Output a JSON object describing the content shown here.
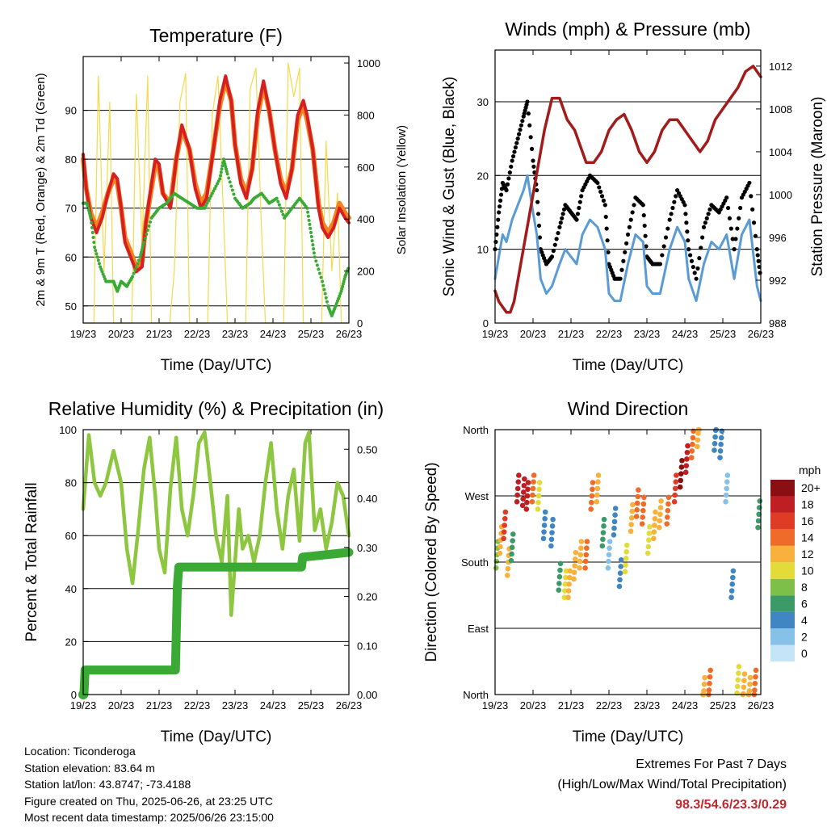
{
  "chart_data": [
    {
      "type": "line",
      "title": "Temperature (F)",
      "xlabel": "Time (Day/UTC)",
      "ylabel": "2m & 9m T (Red, Orange) & 2m Td (Green)",
      "ylabel_right": "Solar Insolation (Yellow)",
      "x_ticks": [
        "19/23",
        "20/23",
        "21/23",
        "22/23",
        "23/23",
        "24/23",
        "25/23",
        "26/23"
      ],
      "ylim": [
        46.5,
        101
      ],
      "y_ticks": [
        50,
        60,
        70,
        80,
        90
      ],
      "ylim_right": [
        0,
        1025
      ],
      "y_ticks_right": [
        0,
        200,
        400,
        600,
        800,
        1000
      ],
      "series": [
        {
          "name": "2m T",
          "color": "#d62020",
          "x": [
            0,
            0.08,
            0.2,
            0.35,
            0.5,
            0.65,
            0.8,
            0.9,
            1.0,
            1.1,
            1.25,
            1.4,
            1.55,
            1.65,
            1.8,
            1.9,
            2.0,
            2.1,
            2.3,
            2.45,
            2.6,
            2.8,
            2.95,
            3.1,
            3.25,
            3.45,
            3.6,
            3.75,
            3.9,
            4.0,
            4.15,
            4.3,
            4.45,
            4.6,
            4.75,
            4.9,
            5.05,
            5.2,
            5.35,
            5.5,
            5.65,
            5.8,
            5.9,
            6.05,
            6.2,
            6.3,
            6.45,
            6.6,
            6.75,
            6.9,
            7.0
          ],
          "y": [
            81,
            74,
            68,
            65,
            68,
            73,
            77,
            76,
            70,
            63,
            60,
            57,
            58,
            67,
            75,
            80,
            79,
            73,
            70,
            80,
            87,
            82,
            74,
            70,
            72,
            83,
            92,
            97,
            92,
            83,
            75,
            72,
            78,
            90,
            96,
            90,
            82,
            75,
            72,
            78,
            89,
            92,
            89,
            82,
            70,
            66,
            64,
            66,
            70,
            68,
            67
          ]
        },
        {
          "name": "9m T",
          "color": "#f5821f",
          "x": [
            0,
            0.08,
            0.2,
            0.35,
            0.5,
            0.65,
            0.8,
            0.9,
            1.0,
            1.1,
            1.25,
            1.4,
            1.55,
            1.65,
            1.8,
            1.9,
            2.0,
            2.1,
            2.3,
            2.45,
            2.6,
            2.8,
            2.95,
            3.1,
            3.25,
            3.45,
            3.6,
            3.75,
            3.9,
            4.0,
            4.15,
            4.3,
            4.45,
            4.6,
            4.75,
            4.9,
            5.05,
            5.2,
            5.35,
            5.5,
            5.65,
            5.8,
            5.9,
            6.05,
            6.2,
            6.3,
            6.45,
            6.6,
            6.75,
            6.9,
            7.0
          ],
          "y": [
            80,
            74,
            69,
            66,
            69,
            73,
            76,
            75,
            70,
            64,
            61,
            58,
            59,
            67,
            74,
            79,
            78,
            73,
            71,
            80,
            86,
            82,
            75,
            71,
            73,
            83,
            91,
            96,
            92,
            83,
            76,
            73,
            78,
            89,
            95,
            90,
            82,
            76,
            73,
            78,
            88,
            91,
            88,
            82,
            71,
            67,
            65,
            67,
            71,
            69,
            68
          ]
        },
        {
          "name": "2m Td",
          "color": "#3aaa35",
          "x": [
            0,
            0.1,
            0.2,
            0.3,
            0.45,
            0.6,
            0.8,
            0.9,
            1.0,
            1.15,
            1.3,
            1.5,
            1.6,
            1.8,
            2.0,
            2.2,
            2.4,
            2.6,
            2.8,
            3.0,
            3.2,
            3.4,
            3.6,
            3.7,
            3.8,
            4.0,
            4.2,
            4.4,
            4.5,
            4.7,
            4.9,
            5.1,
            5.3,
            5.5,
            5.7,
            5.9,
            6.0,
            6.1,
            6.3,
            6.45,
            6.55,
            6.65,
            6.8,
            6.9,
            7.0
          ],
          "y": [
            71,
            71,
            68,
            62,
            58,
            55,
            55,
            53,
            55,
            54,
            56,
            60,
            63,
            68,
            70,
            71,
            73,
            72,
            71,
            70,
            70,
            73,
            76,
            80,
            77,
            72,
            70,
            71,
            72,
            73,
            71,
            72,
            68,
            70,
            72,
            70,
            65,
            60,
            55,
            50,
            48,
            50,
            53,
            56,
            58
          ]
        },
        {
          "name": "Solar Insolation",
          "color": "#f5d94a",
          "axis": "right",
          "x": [
            0,
            0.28,
            0.4,
            0.55,
            0.7,
            0.8,
            0.95,
            1.1,
            1.28,
            1.4,
            1.55,
            1.7,
            1.8,
            1.95,
            2.1,
            2.28,
            2.4,
            2.55,
            2.7,
            2.8,
            2.95,
            3.1,
            3.28,
            3.4,
            3.55,
            3.7,
            3.8,
            3.95,
            4.1,
            4.28,
            4.4,
            4.55,
            4.7,
            4.8,
            4.95,
            5.1,
            5.28,
            5.4,
            5.55,
            5.7,
            5.8,
            5.95,
            6.1,
            6.28,
            6.4,
            6.55,
            6.7,
            6.8,
            6.95,
            7.0
          ],
          "y": [
            0,
            0,
            950,
            200,
            850,
            0,
            0,
            0,
            0,
            880,
            300,
            950,
            0,
            0,
            0,
            0,
            200,
            850,
            960,
            0,
            0,
            0,
            0,
            800,
            950,
            400,
            0,
            0,
            0,
            0,
            900,
            980,
            350,
            0,
            0,
            0,
            0,
            1000,
            870,
            980,
            0,
            0,
            0,
            0,
            700,
            200,
            500,
            0,
            0,
            0
          ]
        }
      ]
    },
    {
      "type": "line",
      "title": "Winds (mph) & Pressure (mb)",
      "xlabel": "Time (Day/UTC)",
      "ylabel": "Sonic Wind & Gust (Blue, Black)",
      "ylabel_right": "Station Pressure (Maroon)",
      "x_ticks": [
        "19/23",
        "20/23",
        "21/23",
        "22/23",
        "23/23",
        "24/23",
        "25/23",
        "26/23"
      ],
      "ylim": [
        0,
        37
      ],
      "y_ticks": [
        0,
        10,
        20,
        30
      ],
      "ylim_right": [
        988,
        1013.5
      ],
      "y_ticks_right": [
        988,
        992,
        996,
        1000,
        1004,
        1008,
        1012
      ],
      "series": [
        {
          "name": "Sonic Wind",
          "color": "#5b9bd5",
          "x": [
            0,
            0.1,
            0.2,
            0.3,
            0.45,
            0.6,
            0.75,
            0.85,
            1.0,
            1.1,
            1.2,
            1.35,
            1.5,
            1.7,
            1.85,
            2.0,
            2.15,
            2.3,
            2.5,
            2.7,
            2.9,
            3.0,
            3.15,
            3.3,
            3.5,
            3.7,
            3.9,
            4.0,
            4.15,
            4.35,
            4.6,
            4.8,
            5.0,
            5.1,
            5.3,
            5.5,
            5.7,
            5.9,
            6.1,
            6.3,
            6.5,
            6.7,
            6.9,
            7.0
          ],
          "y": [
            6,
            9,
            12,
            11,
            14,
            16,
            18,
            20,
            15,
            12,
            6,
            4,
            5,
            8,
            10,
            9,
            8,
            12,
            14,
            13,
            10,
            4,
            3,
            3,
            8,
            12,
            11,
            5,
            4,
            4,
            10,
            13,
            11,
            6,
            3,
            8,
            11,
            10,
            12,
            6,
            12,
            14,
            5,
            3
          ]
        },
        {
          "name": "Gust",
          "color": "#000000",
          "x": [
            0,
            0.1,
            0.2,
            0.3,
            0.45,
            0.6,
            0.75,
            0.85,
            1.0,
            1.1,
            1.2,
            1.35,
            1.5,
            1.7,
            1.85,
            2.0,
            2.15,
            2.3,
            2.5,
            2.7,
            2.9,
            3.0,
            3.15,
            3.3,
            3.5,
            3.7,
            3.9,
            4.0,
            4.15,
            4.35,
            4.6,
            4.8,
            5.0,
            5.1,
            5.3,
            5.5,
            5.7,
            5.9,
            6.1,
            6.3,
            6.5,
            6.7,
            6.9,
            7.0
          ],
          "y": [
            10,
            15,
            19,
            18,
            22,
            25,
            28,
            30,
            22,
            18,
            10,
            8,
            9,
            13,
            16,
            15,
            14,
            18,
            20,
            19,
            16,
            8,
            6,
            6,
            12,
            17,
            16,
            9,
            8,
            8,
            14,
            18,
            16,
            10,
            6,
            13,
            16,
            15,
            17,
            10,
            17,
            19,
            10,
            6
          ]
        },
        {
          "name": "Station Pressure",
          "color": "#a31c1c",
          "axis": "right",
          "x": [
            0,
            0.1,
            0.2,
            0.3,
            0.4,
            0.5,
            0.7,
            0.9,
            1.1,
            1.3,
            1.5,
            1.7,
            1.9,
            2.1,
            2.3,
            2.4,
            2.6,
            2.8,
            3.0,
            3.2,
            3.4,
            3.6,
            3.8,
            4.0,
            4.2,
            4.4,
            4.6,
            4.8,
            5.0,
            5.2,
            5.4,
            5.6,
            5.8,
            6.0,
            6.2,
            6.4,
            6.6,
            6.8,
            7.0
          ],
          "y": [
            991,
            990,
            989.5,
            989,
            989,
            990,
            994,
            998,
            1002,
            1006,
            1009,
            1009,
            1007,
            1006,
            1004,
            1003,
            1003,
            1004,
            1006,
            1007,
            1007.5,
            1006,
            1004,
            1003,
            1004,
            1006,
            1007,
            1007,
            1006,
            1005,
            1004,
            1005,
            1007,
            1008,
            1009,
            1010,
            1011.5,
            1012,
            1011
          ]
        }
      ]
    },
    {
      "type": "line",
      "title": "Relative Humidity (%) & Precipitation (in)",
      "xlabel": "Time (Day/UTC)",
      "ylabel": "Percent & Total Rainfall",
      "x_ticks": [
        "19/23",
        "20/23",
        "21/23",
        "22/23",
        "23/23",
        "24/23",
        "25/23",
        "26/23"
      ],
      "ylim": [
        0,
        100
      ],
      "y_ticks": [
        0,
        20,
        40,
        60,
        80,
        100
      ],
      "ylim_right": [
        0,
        0.54
      ],
      "y_ticks_right": [
        "0.00",
        "0.10",
        "0.20",
        "0.30",
        "0.40",
        "0.50"
      ],
      "series": [
        {
          "name": "Relative Humidity",
          "color": "#8dc63f",
          "x": [
            0,
            0.15,
            0.3,
            0.45,
            0.6,
            0.8,
            1.0,
            1.15,
            1.3,
            1.45,
            1.6,
            1.75,
            1.9,
            2.0,
            2.15,
            2.3,
            2.45,
            2.6,
            2.75,
            2.9,
            3.05,
            3.2,
            3.35,
            3.5,
            3.65,
            3.8,
            3.9,
            4.0,
            4.1,
            4.2,
            4.35,
            4.5,
            4.65,
            4.8,
            4.95,
            5.1,
            5.25,
            5.4,
            5.55,
            5.7,
            5.85,
            5.95,
            6.1,
            6.25,
            6.4,
            6.55,
            6.7,
            6.85,
            7.0
          ],
          "y": [
            70,
            98,
            80,
            75,
            80,
            92,
            80,
            55,
            42,
            62,
            85,
            97,
            75,
            55,
            46,
            78,
            97,
            70,
            60,
            75,
            95,
            99,
            80,
            60,
            50,
            75,
            30,
            50,
            70,
            55,
            60,
            50,
            60,
            80,
            95,
            70,
            55,
            75,
            85,
            58,
            95,
            99,
            62,
            70,
            55,
            65,
            80,
            75,
            60
          ]
        },
        {
          "name": "Total Rainfall",
          "color": "#3aaa35",
          "axis": "right",
          "x": [
            0,
            0.02,
            0.05,
            2.43,
            2.45,
            2.48,
            2.52,
            5.75,
            5.78,
            7.0
          ],
          "y": [
            0,
            0,
            0.05,
            0.05,
            0.12,
            0.22,
            0.26,
            0.26,
            0.28,
            0.29
          ]
        }
      ]
    },
    {
      "type": "scatter",
      "title": "Wind Direction",
      "xlabel": "Time (Day/UTC)",
      "ylabel": "Direction (Colored By Speed)",
      "x_ticks": [
        "19/23",
        "20/23",
        "21/23",
        "22/23",
        "23/23",
        "24/23",
        "25/23",
        "26/23"
      ],
      "ylim": [
        0,
        360
      ],
      "y_ticks": [
        "North",
        "East",
        "South",
        "West",
        "North"
      ],
      "colorbar_title": "mph",
      "colorbar_labels": [
        "0",
        "2",
        "4",
        "6",
        "8",
        "10",
        "12",
        "14",
        "16",
        "18",
        "20+"
      ],
      "colorbar_colors": [
        "#c4e4f8",
        "#86c1e8",
        "#3f86c2",
        "#3c9a69",
        "#7ebf4a",
        "#e3db3a",
        "#f8b13c",
        "#ef6b2a",
        "#df3b25",
        "#bf1e22",
        "#8a0f13"
      ],
      "points": {
        "x": [
          0.05,
          0.15,
          0.25,
          0.35,
          0.45,
          0.6,
          0.75,
          0.85,
          1.0,
          1.15,
          1.3,
          1.5,
          1.7,
          1.85,
          1.95,
          2.1,
          2.25,
          2.4,
          2.55,
          2.7,
          2.85,
          3.0,
          3.15,
          3.3,
          3.45,
          3.6,
          3.75,
          3.9,
          4.05,
          4.2,
          4.35,
          4.55,
          4.75,
          4.9,
          5.05,
          5.2,
          5.35,
          5.5,
          5.65,
          5.8,
          5.95,
          6.1,
          6.25,
          6.4,
          6.55,
          6.7,
          6.85,
          6.95
        ],
        "y": [
          190,
          210,
          230,
          180,
          200,
          280,
          275,
          270,
          280,
          270,
          230,
          220,
          160,
          150,
          150,
          175,
          190,
          190,
          270,
          280,
          220,
          190,
          235,
          165,
          185,
          240,
          260,
          250,
          210,
          230,
          245,
          250,
          280,
          300,
          320,
          340,
          355,
          5,
          15,
          350,
          340,
          280,
          150,
          20,
          10,
          5,
          15,
          245
        ],
        "speed": [
          8,
          11,
          16,
          12,
          6,
          17,
          18,
          17,
          14,
          10,
          4,
          4,
          6,
          10,
          12,
          12,
          12,
          13,
          14,
          12,
          5,
          2,
          3,
          3,
          10,
          12,
          13,
          14,
          10,
          11,
          12,
          14,
          16,
          20,
          18,
          14,
          12,
          12,
          14,
          4,
          3,
          2,
          3,
          10,
          11,
          12,
          14,
          6
        ]
      }
    }
  ],
  "info": {
    "location": "Location: Ticonderoga",
    "elevation": "Station elevation: 83.64 m",
    "latlon": "Station lat/lon: 43.8747; -73.4188",
    "created": "Figure created on Thu, 2025-06-26, at 23:25 UTC",
    "timestamp": "Most recent data timestamp: 2025/06/26 23:15:00"
  },
  "extremes": {
    "title": "Extremes For Past 7 Days",
    "subtitle": "(High/Low/Max Wind/Total Precipitation)",
    "values": "98.3/54.6/23.3/0.29"
  }
}
